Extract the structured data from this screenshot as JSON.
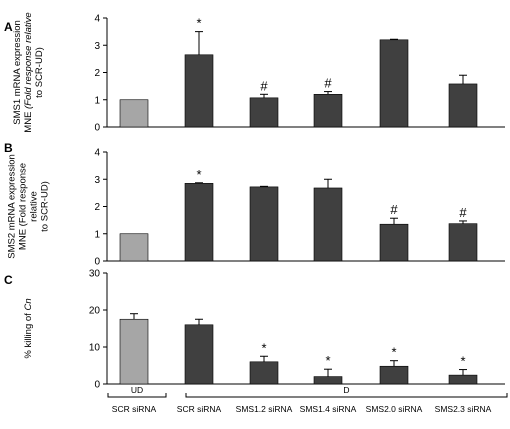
{
  "colors": {
    "control": "#a6a6a6",
    "treated": "#404040",
    "axis": "#000000"
  },
  "groups": [
    {
      "label": "UD",
      "from": 0,
      "to": 0
    },
    {
      "label": "D",
      "from": 1,
      "to": 5
    }
  ],
  "chart_data": [
    {
      "type": "bar",
      "panel": "A",
      "ylabel_lines": [
        "SMS1 mRNA expression",
        "MNE (Fold response relative",
        "to SCR-UD)"
      ],
      "italic_line": 1,
      "ylim": [
        0,
        4
      ],
      "yticks": [
        0,
        1,
        2,
        3,
        4
      ],
      "categories": [
        "SCR siRNA",
        "SCR siRNA",
        "SMS1.2 siRNA",
        "SMS1.4 siRNA",
        "SMS2.0 siRNA",
        "SMS2.3 siRNA"
      ],
      "values": [
        1.0,
        2.65,
        1.07,
        1.2,
        3.2,
        1.58
      ],
      "errors": [
        0,
        0.85,
        0.13,
        0.1,
        0.02,
        0.32
      ],
      "annotations": [
        "",
        "*",
        "#",
        "#",
        "",
        ""
      ]
    },
    {
      "type": "bar",
      "panel": "B",
      "ylabel_lines": [
        "SMS2 mRNA expression",
        "MNE (Fold response",
        "relative",
        "to SCR-UD)"
      ],
      "italic_line": -1,
      "ylim": [
        0,
        4
      ],
      "yticks": [
        0,
        1,
        2,
        3,
        4
      ],
      "categories": [
        "SCR siRNA",
        "SCR siRNA",
        "SMS1.2 siRNA",
        "SMS1.4 siRNA",
        "SMS2.0 siRNA",
        "SMS2.3 siRNA"
      ],
      "values": [
        1.0,
        2.85,
        2.72,
        2.68,
        1.35,
        1.37
      ],
      "errors": [
        0,
        0.02,
        0.02,
        0.32,
        0.22,
        0.1
      ],
      "annotations": [
        "",
        "*",
        "",
        "",
        "#",
        "#"
      ]
    },
    {
      "type": "bar",
      "panel": "C",
      "ylabel_lines": [
        "% killing of Cn"
      ],
      "italic_line": -1,
      "ylim": [
        0,
        30
      ],
      "yticks": [
        0,
        10,
        20,
        30
      ],
      "categories": [
        "SCR siRNA",
        "SCR siRNA",
        "SMS1.2 siRNA",
        "SMS1.4 siRNA",
        "SMS2.0 siRNA",
        "SMS2.3 siRNA"
      ],
      "values": [
        17.5,
        16.0,
        6.0,
        2.0,
        4.8,
        2.4
      ],
      "errors": [
        1.5,
        1.5,
        1.5,
        2.0,
        1.5,
        1.5
      ],
      "annotations": [
        "",
        "",
        "*",
        "*",
        "*",
        "*"
      ]
    }
  ]
}
